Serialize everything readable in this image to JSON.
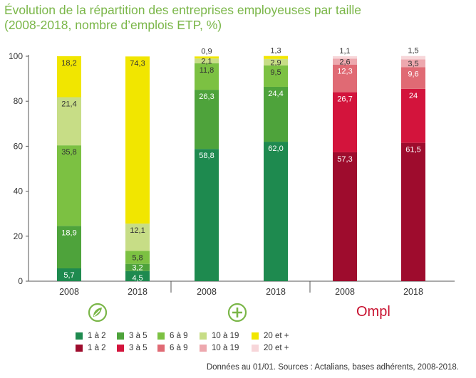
{
  "title": {
    "line1": "Évolution de la répartition des entreprises employeuses par taille",
    "line2": "(2008-2018, nombre d’emplois ETP, %)"
  },
  "source": "Données au 01/01. Sources : Actalians, bases adhérents, 2008-2018.",
  "logos": [
    {
      "name": "first-group-logo",
      "icon": "leaf-circle-icon",
      "color": "#7ab648"
    },
    {
      "name": "second-group-logo",
      "icon": "plus-circle-icon",
      "color": "#7ab648"
    },
    {
      "name": "ompl-logo",
      "text": "Ompl",
      "color": "#c8102e"
    }
  ],
  "legend": {
    "green": [
      {
        "label": "1 à 2",
        "color": "#1e8a4f"
      },
      {
        "label": "3 à 5",
        "color": "#4ea33b"
      },
      {
        "label": "6 à 9",
        "color": "#7cc142"
      },
      {
        "label": "10 à 19",
        "color": "#c7dd86"
      },
      {
        "label": "20 et +",
        "color": "#f1e600"
      }
    ],
    "red": [
      {
        "label": "1 à 2",
        "color": "#9e0c2d"
      },
      {
        "label": "3 à 5",
        "color": "#d3143c"
      },
      {
        "label": "6 à 9",
        "color": "#e06a74"
      },
      {
        "label": "10 à 19",
        "color": "#eda8ae"
      },
      {
        "label": "20 et +",
        "color": "#f7d6d9"
      }
    ]
  },
  "chart_data": {
    "type": "bar",
    "stacked": true,
    "ylim": [
      0,
      100
    ],
    "yticks": [
      0,
      20,
      40,
      60,
      80,
      100
    ],
    "ytick_labels": [
      "0",
      "20",
      "40",
      "60",
      "80",
      "100"
    ],
    "grid": false,
    "categories": [
      "2008",
      "2018",
      "2008",
      "2018",
      "2008",
      "2018"
    ],
    "segments": [
      "1 à 2",
      "3 à 5",
      "6 à 9",
      "10 à 19",
      "20 et +"
    ],
    "bars": [
      {
        "category": "2008",
        "palette": "green",
        "values": [
          5.7,
          18.9,
          35.8,
          21.4,
          18.2
        ],
        "labels": [
          "5,7",
          "18,9",
          "35,8",
          "21,4",
          "18,2"
        ]
      },
      {
        "category": "2018",
        "palette": "green",
        "values": [
          4.5,
          3.2,
          5.8,
          12.1,
          74.3
        ],
        "labels": [
          "4,5",
          "3,2",
          "5,8",
          "12,1",
          "74,3"
        ]
      },
      {
        "category": "2008",
        "palette": "green",
        "values": [
          58.8,
          26.3,
          11.8,
          2.1,
          0.9
        ],
        "labels": [
          "58,8",
          "26,3",
          "11,8",
          "2,1",
          "0,9"
        ]
      },
      {
        "category": "2018",
        "palette": "green",
        "values": [
          62.0,
          24.4,
          9.5,
          2.9,
          1.3
        ],
        "labels": [
          "62,0",
          "24,4",
          "9,5",
          "2,9",
          "1,3"
        ]
      },
      {
        "category": "2008",
        "palette": "red",
        "values": [
          57.3,
          26.7,
          12.3,
          2.6,
          1.1
        ],
        "labels": [
          "57,3",
          "26,7",
          "12,3",
          "2,6",
          "1,1"
        ]
      },
      {
        "category": "2018",
        "palette": "red",
        "values": [
          61.5,
          24,
          9.6,
          3.5,
          1.5
        ],
        "labels": [
          "61,5",
          "24",
          "9,6",
          "3,5",
          "1,5"
        ]
      }
    ],
    "legend_position": "bottom"
  }
}
